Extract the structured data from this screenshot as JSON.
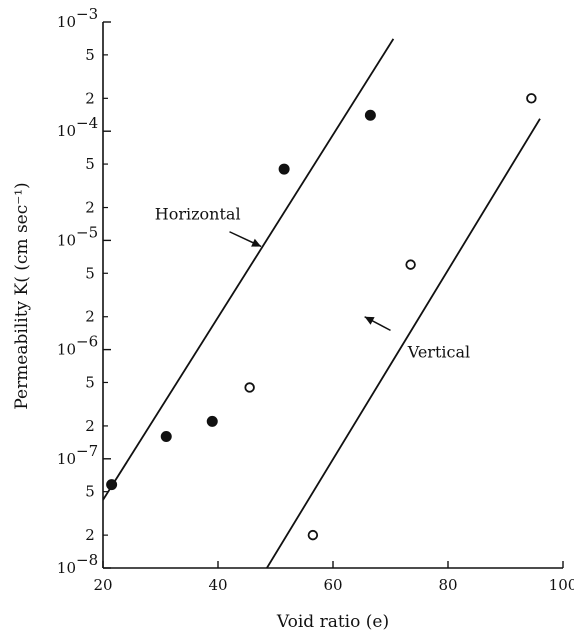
{
  "chart_data": {
    "type": "scatter",
    "xlabel": "Void ratio (e)",
    "ylabel": "Permeability  K( (cm sec⁻¹)",
    "xlim": [
      20,
      100
    ],
    "ylim": [
      1e-08,
      0.001
    ],
    "yscale": "log",
    "grid": false,
    "x_ticks": [
      20,
      40,
      60,
      80,
      100
    ],
    "y_decades": [
      {
        "value": 1e-08,
        "mantissa": "10",
        "exp": "−8"
      },
      {
        "value": 1e-07,
        "mantissa": "10",
        "exp": "−7"
      },
      {
        "value": 1e-06,
        "mantissa": "10",
        "exp": "−6"
      },
      {
        "value": 1e-05,
        "mantissa": "10",
        "exp": "−5"
      },
      {
        "value": 0.0001,
        "mantissa": "10",
        "exp": "−4"
      },
      {
        "value": 0.001,
        "mantissa": "10",
        "exp": "−3"
      }
    ],
    "y_minor": [
      {
        "value": 2e-08,
        "label": "2"
      },
      {
        "value": 5e-08,
        "label": "5"
      },
      {
        "value": 2e-07,
        "label": "2"
      },
      {
        "value": 5e-07,
        "label": "5"
      },
      {
        "value": 2e-06,
        "label": "2"
      },
      {
        "value": 5e-06,
        "label": "5"
      },
      {
        "value": 2e-05,
        "label": "2"
      },
      {
        "value": 5e-05,
        "label": "5"
      },
      {
        "value": 0.0002,
        "label": "2"
      },
      {
        "value": 0.0005,
        "label": "5"
      }
    ],
    "series": [
      {
        "name": "Horizontal",
        "marker": "filled",
        "points": [
          {
            "x": 21.5,
            "y": 5.8e-08
          },
          {
            "x": 31,
            "y": 1.6e-07
          },
          {
            "x": 39,
            "y": 2.2e-07
          },
          {
            "x": 51.5,
            "y": 4.5e-05
          },
          {
            "x": 66.5,
            "y": 0.00014
          }
        ],
        "fit": [
          {
            "x": 20,
            "y": 4.2e-08
          },
          {
            "x": 70.5,
            "y": 0.0007
          }
        ]
      },
      {
        "name": "Vertical",
        "marker": "open",
        "points": [
          {
            "x": 45.5,
            "y": 4.5e-07
          },
          {
            "x": 56.5,
            "y": 2e-08
          },
          {
            "x": 73.5,
            "y": 6e-06
          },
          {
            "x": 94.5,
            "y": 0.0002
          }
        ],
        "fit": [
          {
            "x": 48.5,
            "y": 1e-08
          },
          {
            "x": 96,
            "y": 0.00013
          }
        ]
      }
    ],
    "annotations": [
      {
        "text": "Horizontal",
        "series": "Horizontal",
        "tx": 29,
        "ty": 1.55e-05,
        "ax": 42,
        "ay": 1.2e-05,
        "hx": 47.5,
        "hy": 8.8e-06
      },
      {
        "text": "Vertical",
        "series": "Vertical",
        "tx": 73,
        "ty": 8.5e-07,
        "ax": 70,
        "ay": 1.5e-06,
        "hx": 65.5,
        "hy": 2e-06
      }
    ]
  }
}
